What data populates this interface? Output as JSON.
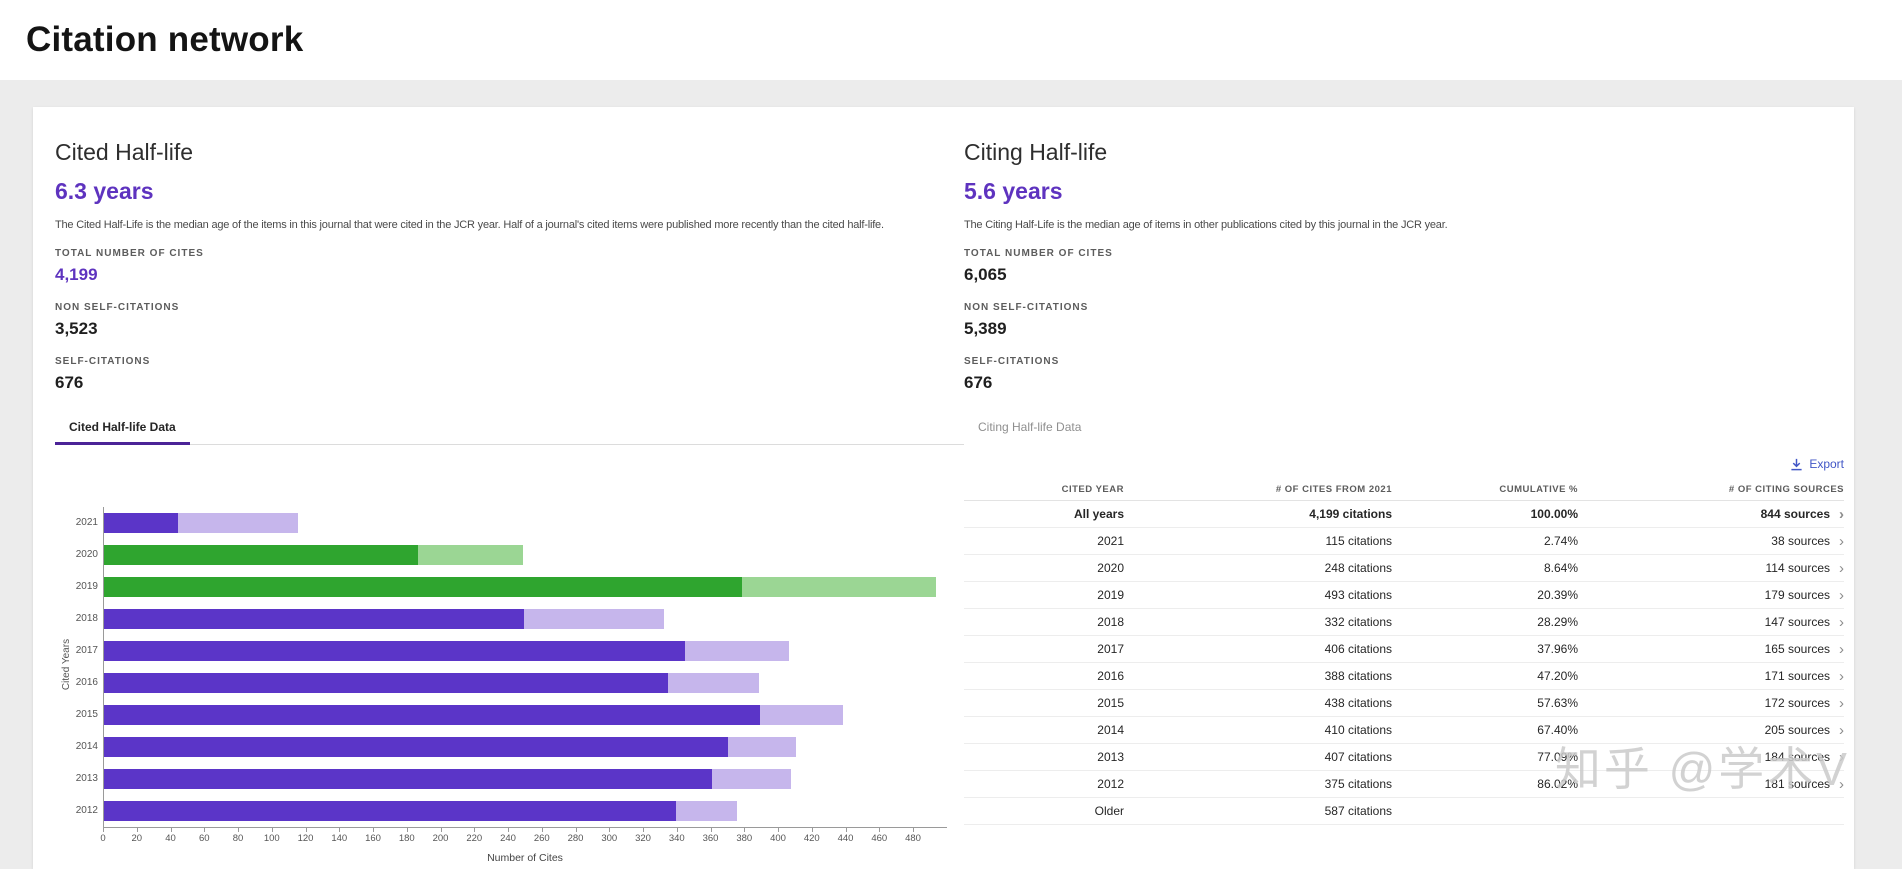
{
  "header": {
    "title": "Citation network"
  },
  "cited": {
    "title": "Cited Half-life",
    "value": "6.3 years",
    "description": "The Cited Half-Life is the median age of the items in this journal that were cited in the JCR year. Half of a journal's cited items were published more recently than the cited half-life.",
    "stats": [
      {
        "label": "TOTAL NUMBER OF CITES",
        "value": "4,199"
      },
      {
        "label": "NON SELF-CITATIONS",
        "value": "3,523"
      },
      {
        "label": "SELF-CITATIONS",
        "value": "676"
      }
    ],
    "tab_label": "Cited Half-life Data"
  },
  "citing": {
    "title": "Citing Half-life",
    "value": "5.6 years",
    "description": "The Citing Half-Life is the median age of items in other publications cited by this journal in the JCR year.",
    "stats": [
      {
        "label": "TOTAL NUMBER OF CITES",
        "value": "6,065"
      },
      {
        "label": "NON SELF-CITATIONS",
        "value": "5,389"
      },
      {
        "label": "SELF-CITATIONS",
        "value": "676"
      }
    ],
    "tab_label": "Citing Half-life Data"
  },
  "toolbar": {
    "export_label": "Export"
  },
  "chart_data": {
    "type": "bar",
    "orientation": "horizontal",
    "title": "Cited Half-life Data",
    "ylabel": "Cited Years",
    "xlabel": "Number of Cites",
    "xlim": [
      0,
      480
    ],
    "xtick_step": 20,
    "grid": false,
    "categories": [
      "2021",
      "2020",
      "2019",
      "2018",
      "2017",
      "2016",
      "2015",
      "2014",
      "2013",
      "2012"
    ],
    "series": [
      {
        "name": "cites-dark-segment",
        "values": [
          44,
          186,
          378,
          249,
          344,
          334,
          389,
          370,
          360,
          339
        ]
      },
      {
        "name": "cites-light-segment",
        "values": [
          71,
          62,
          115,
          83,
          62,
          54,
          49,
          40,
          47,
          36
        ]
      }
    ],
    "totals": [
      115,
      248,
      493,
      332,
      406,
      388,
      438,
      410,
      407,
      375
    ],
    "color_keys": [
      "purple",
      "green",
      "green",
      "purple",
      "purple",
      "purple",
      "purple",
      "purple",
      "purple",
      "purple"
    ],
    "colors": {
      "purple_main": "#5b35c8",
      "purple_light": "#c6b6ec",
      "green_main": "#2fa52f",
      "green_light": "#9bd694"
    }
  },
  "table": {
    "headers": [
      "CITED YEAR",
      "# OF CITES FROM 2021",
      "CUMULATIVE %",
      "# OF CITING SOURCES"
    ],
    "rows": [
      {
        "year": "All years",
        "cites": "4,199 citations",
        "cumulative": "100.00%",
        "sources": "844 sources",
        "bold": true
      },
      {
        "year": "2021",
        "cites": "115 citations",
        "cumulative": "2.74%",
        "sources": "38 sources"
      },
      {
        "year": "2020",
        "cites": "248 citations",
        "cumulative": "8.64%",
        "sources": "114 sources"
      },
      {
        "year": "2019",
        "cites": "493 citations",
        "cumulative": "20.39%",
        "sources": "179 sources"
      },
      {
        "year": "2018",
        "cites": "332 citations",
        "cumulative": "28.29%",
        "sources": "147 sources"
      },
      {
        "year": "2017",
        "cites": "406 citations",
        "cumulative": "37.96%",
        "sources": "165 sources"
      },
      {
        "year": "2016",
        "cites": "388 citations",
        "cumulative": "47.20%",
        "sources": "171 sources"
      },
      {
        "year": "2015",
        "cites": "438 citations",
        "cumulative": "57.63%",
        "sources": "172 sources"
      },
      {
        "year": "2014",
        "cites": "410 citations",
        "cumulative": "67.40%",
        "sources": "205 sources"
      },
      {
        "year": "2013",
        "cites": "407 citations",
        "cumulative": "77.09%",
        "sources": "184 sources"
      },
      {
        "year": "2012",
        "cites": "375 citations",
        "cumulative": "86.02%",
        "sources": "181 sources"
      },
      {
        "year": "Older",
        "cites": "587 citations",
        "cumulative": "",
        "sources": ""
      }
    ]
  },
  "watermark": "知乎 @学术V"
}
